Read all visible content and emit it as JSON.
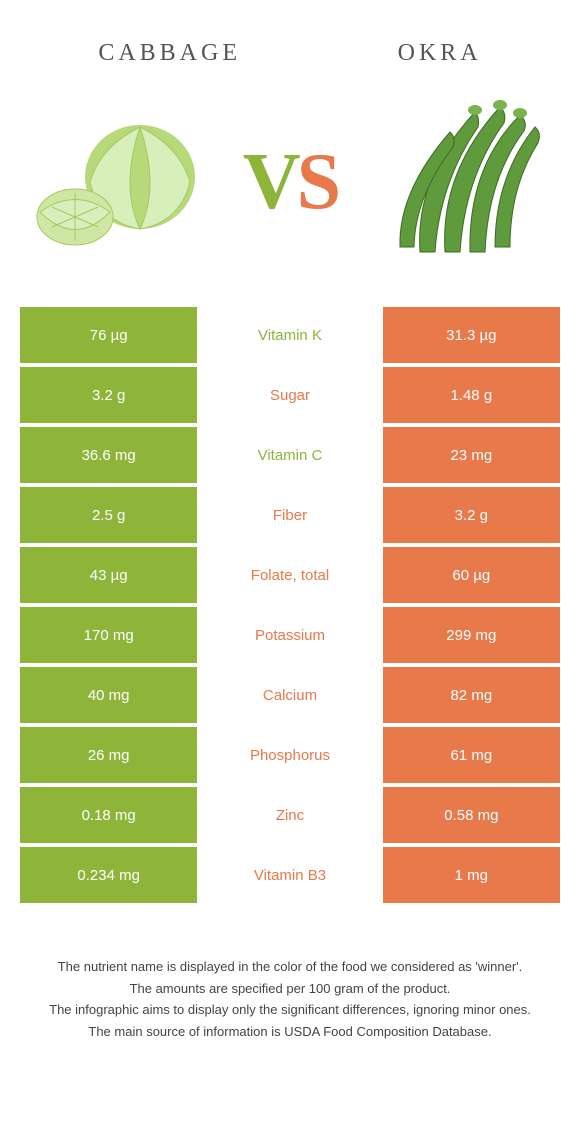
{
  "header": {
    "left_title": "Cabbage",
    "right_title": "Okra",
    "vs_v": "V",
    "vs_s": "S"
  },
  "colors": {
    "left_bg": "#8fb43a",
    "right_bg": "#e8794b",
    "left_text": "#8fb43a",
    "right_text": "#e8794b",
    "page_bg": "#ffffff"
  },
  "comparison": {
    "type": "table",
    "rows": [
      {
        "left": "76 µg",
        "label": "Vitamin K",
        "right": "31.3 µg",
        "winner": "left"
      },
      {
        "left": "3.2 g",
        "label": "Sugar",
        "right": "1.48 g",
        "winner": "right"
      },
      {
        "left": "36.6 mg",
        "label": "Vitamin C",
        "right": "23 mg",
        "winner": "left"
      },
      {
        "left": "2.5 g",
        "label": "Fiber",
        "right": "3.2 g",
        "winner": "right"
      },
      {
        "left": "43 µg",
        "label": "Folate, total",
        "right": "60 µg",
        "winner": "right"
      },
      {
        "left": "170 mg",
        "label": "Potassium",
        "right": "299 mg",
        "winner": "right"
      },
      {
        "left": "40 mg",
        "label": "Calcium",
        "right": "82 mg",
        "winner": "right"
      },
      {
        "left": "26 mg",
        "label": "Phosphorus",
        "right": "61 mg",
        "winner": "right"
      },
      {
        "left": "0.18 mg",
        "label": "Zinc",
        "right": "0.58 mg",
        "winner": "right"
      },
      {
        "left": "0.234 mg",
        "label": "Vitamin B3",
        "right": "1 mg",
        "winner": "right"
      }
    ]
  },
  "footnotes": [
    "The nutrient name is displayed in the color of the food we considered as 'winner'.",
    "The amounts are specified per 100 gram of the product.",
    "The infographic aims to display only the significant differences, ignoring minor ones.",
    "The main source of information is USDA Food Composition Database."
  ]
}
